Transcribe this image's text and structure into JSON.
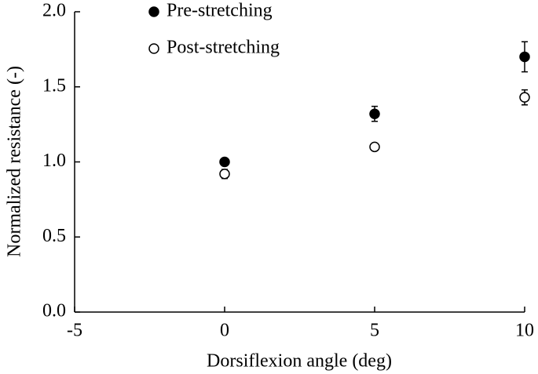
{
  "chart_data": {
    "type": "scatter",
    "xlabel": "Dorsiflexion angle (deg)",
    "ylabel": "Normalized resistance (-)",
    "xlim": [
      -5,
      10
    ],
    "xticks": [
      -5,
      0,
      5,
      10
    ],
    "ylim": [
      0,
      2
    ],
    "yticks": [
      {
        "value": 0,
        "label": "0.0"
      },
      0.5,
      {
        "value": 1,
        "label": "1.0"
      },
      1.5,
      {
        "value": 2,
        "label": "2.0"
      }
    ],
    "series": [
      {
        "name": "Pre-stretching",
        "color": "#000000",
        "marker": "filled",
        "x": [
          0,
          5,
          10
        ],
        "values": [
          1.0,
          1.32,
          1.7
        ],
        "errors": [
          0.02,
          0.05,
          0.1
        ]
      },
      {
        "name": "Post-stretching",
        "color": "#000000",
        "marker": "open",
        "x": [
          0,
          5,
          10
        ],
        "values": [
          0.92,
          1.1,
          1.43
        ],
        "errors": [
          0.03,
          0.02,
          0.05
        ]
      }
    ]
  }
}
